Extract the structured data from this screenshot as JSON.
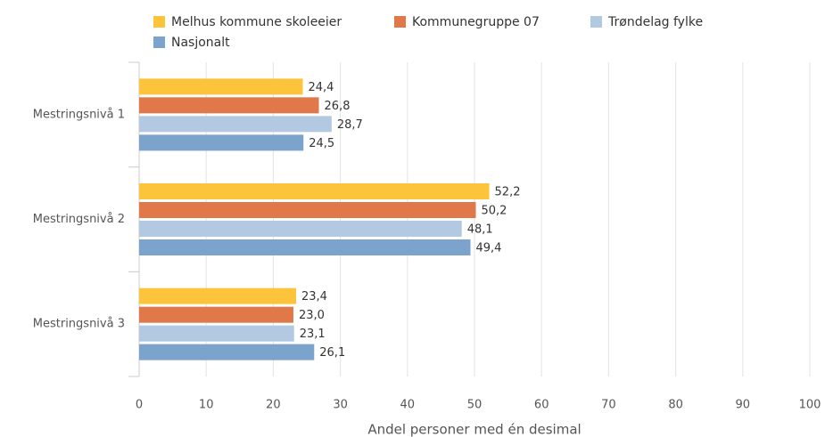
{
  "chart_data": {
    "type": "bar",
    "orientation": "horizontal",
    "categories": [
      "Mestringsnivå 1",
      "Mestringsnivå 2",
      "Mestringsnivå 3"
    ],
    "series": [
      {
        "name": "Melhus kommune skoleeier",
        "color": "#fcc43a",
        "values": [
          24.4,
          52.2,
          23.4
        ],
        "value_labels": [
          "24,4",
          "52,2",
          "23,4"
        ]
      },
      {
        "name": "Kommunegruppe 07",
        "color": "#e0784a",
        "values": [
          26.8,
          50.2,
          23.0
        ],
        "value_labels": [
          "26,8",
          "50,2",
          "23,0"
        ]
      },
      {
        "name": "Trøndelag fylke",
        "color": "#b2c9e1",
        "values": [
          28.7,
          48.1,
          23.1
        ],
        "value_labels": [
          "28,7",
          "48,1",
          "23,1"
        ]
      },
      {
        "name": "Nasjonalt",
        "color": "#7ba3cc",
        "values": [
          24.5,
          49.4,
          26.1
        ],
        "value_labels": [
          "24,5",
          "49,4",
          "26,1"
        ]
      }
    ],
    "xlabel": "Andel personer med én desimal",
    "xlim": [
      0,
      100
    ],
    "xticks": [
      0,
      10,
      20,
      30,
      40,
      50,
      60,
      70,
      80,
      90,
      100
    ],
    "grid": true,
    "legend": "top"
  }
}
